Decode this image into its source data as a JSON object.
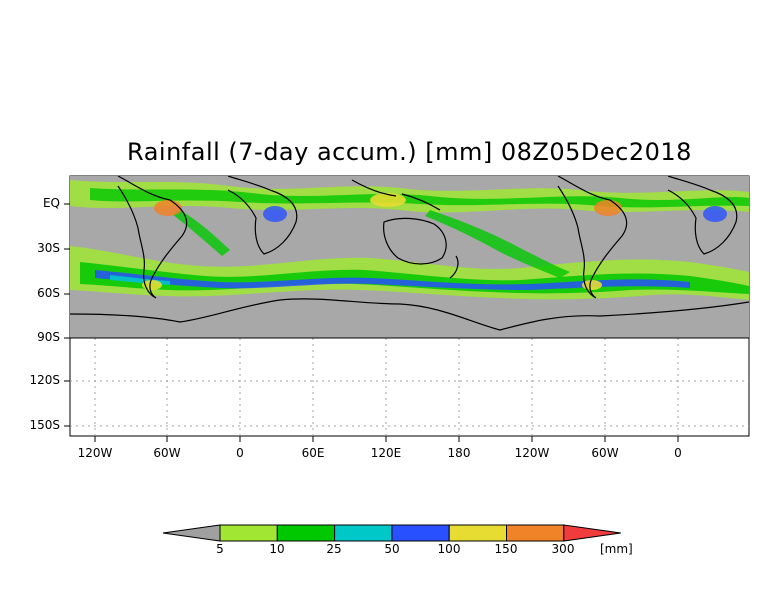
{
  "title": "Rainfall (7-day accum.) [mm] 08Z05Dec2018",
  "y_ticks": [
    "EQ",
    "30S",
    "60S",
    "90S",
    "120S",
    "150S"
  ],
  "x_ticks": [
    "120W",
    "60W",
    "0",
    "60E",
    "120E",
    "180",
    "120W",
    "60W",
    "0"
  ],
  "colorbar": {
    "labels": [
      "5",
      "10",
      "25",
      "50",
      "100",
      "150",
      "300"
    ],
    "unit": "[mm]",
    "colors": [
      "#a0a0a0",
      "#a0e632",
      "#00c800",
      "#00c8c8",
      "#2850ff",
      "#e6dc32",
      "#f08228",
      "#f03c3c"
    ]
  },
  "map": {
    "land_color": "#a8a8a8",
    "coast_color": "#000000",
    "grid_color": "#a0a0a0"
  }
}
